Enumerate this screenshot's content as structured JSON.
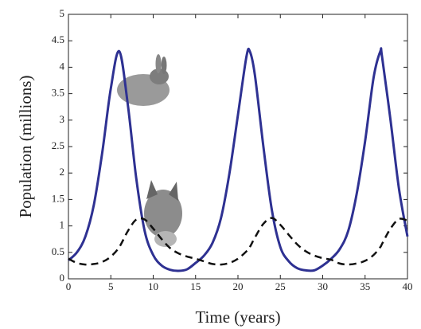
{
  "chart_data": {
    "type": "line",
    "xlabel": "Time (years)",
    "ylabel": "Population (millions)",
    "x": [
      0,
      1,
      2,
      3,
      4,
      5,
      6,
      7,
      8,
      9,
      10,
      11,
      12,
      13,
      14,
      15,
      16,
      17,
      18,
      19,
      20,
      21,
      21.4,
      22,
      23,
      24,
      25,
      26,
      27,
      28,
      29,
      30,
      31,
      32,
      33,
      34,
      35,
      36,
      36.8,
      37,
      38,
      39,
      40
    ],
    "series": [
      {
        "color": "#2e3192",
        "style": "solid",
        "values": [
          0.35,
          0.5,
          0.8,
          1.4,
          2.4,
          3.6,
          4.3,
          3.3,
          1.9,
          0.9,
          0.45,
          0.25,
          0.17,
          0.15,
          0.18,
          0.3,
          0.44,
          0.68,
          1.15,
          2.0,
          3.1,
          4.2,
          4.3,
          3.85,
          2.5,
          1.3,
          0.6,
          0.33,
          0.2,
          0.16,
          0.16,
          0.25,
          0.38,
          0.56,
          0.9,
          1.6,
          2.6,
          3.8,
          4.3,
          4.2,
          3.0,
          1.7,
          0.8
        ]
      },
      {
        "color": "#111111",
        "style": "dashed",
        "values": [
          0.38,
          0.3,
          0.27,
          0.28,
          0.32,
          0.42,
          0.6,
          0.9,
          1.12,
          1.12,
          0.95,
          0.75,
          0.58,
          0.48,
          0.42,
          0.38,
          0.33,
          0.28,
          0.27,
          0.3,
          0.38,
          0.52,
          0.6,
          0.78,
          1.04,
          1.15,
          1.02,
          0.83,
          0.65,
          0.52,
          0.44,
          0.39,
          0.36,
          0.29,
          0.27,
          0.29,
          0.34,
          0.45,
          0.6,
          0.66,
          0.95,
          1.13,
          1.1
        ]
      }
    ],
    "xlim": [
      0,
      40
    ],
    "xticks": [
      0,
      5,
      10,
      15,
      20,
      25,
      30,
      35,
      40
    ],
    "ylim": [
      0,
      5
    ],
    "yticks": [
      0,
      0.5,
      1,
      1.5,
      2,
      2.5,
      3,
      3.5,
      4,
      4.5,
      5
    ]
  }
}
